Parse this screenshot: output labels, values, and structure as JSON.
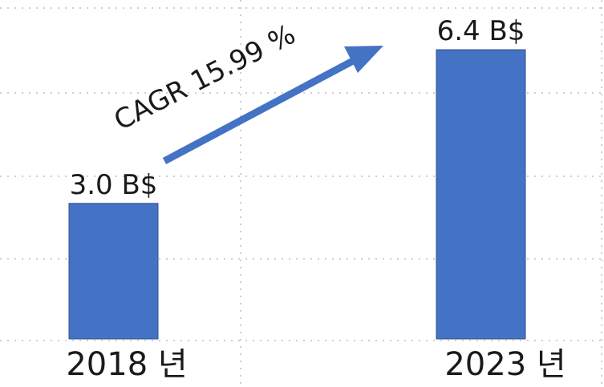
{
  "chart_data": {
    "type": "bar",
    "categories": [
      "2018 년",
      "2023 년"
    ],
    "values": [
      3.0,
      6.4
    ],
    "data_labels": [
      "3.0 B$",
      "6.4 B$"
    ],
    "annotation": "CAGR 15.99 %",
    "grid": true,
    "ylim": [
      0,
      7.5
    ],
    "colors": {
      "bar": "#4472c4",
      "arrow": "#4472c4",
      "grid": "#bfbfbf"
    }
  }
}
